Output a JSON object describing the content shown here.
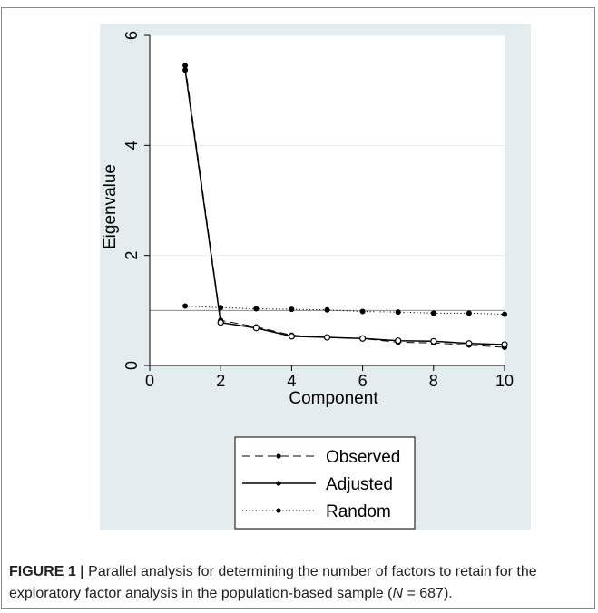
{
  "chart_data": {
    "type": "line",
    "xlabel": "Component",
    "ylabel": "Eigenvalue",
    "xlim": [
      0,
      10
    ],
    "ylim": [
      0,
      6
    ],
    "xticks": [
      0,
      2,
      4,
      6,
      8,
      10
    ],
    "yticks": [
      0,
      2,
      4,
      6
    ],
    "grid": true,
    "reference_line": 1.0,
    "legend_position": "bottom",
    "x": [
      1,
      2,
      3,
      4,
      5,
      6,
      7,
      8,
      9,
      10
    ],
    "series": [
      {
        "name": "Observed",
        "style": "dashed",
        "values": [
          5.45,
          0.82,
          0.7,
          0.55,
          0.51,
          0.49,
          0.42,
          0.41,
          0.37,
          0.33
        ]
      },
      {
        "name": "Adjusted",
        "style": "solid",
        "values": [
          5.37,
          0.78,
          0.68,
          0.53,
          0.51,
          0.49,
          0.45,
          0.44,
          0.4,
          0.38
        ]
      },
      {
        "name": "Random",
        "style": "dotted",
        "values": [
          1.08,
          1.05,
          1.03,
          1.02,
          1.01,
          0.98,
          0.97,
          0.95,
          0.95,
          0.93
        ]
      }
    ],
    "colors": {
      "panel": "#e3ecef",
      "grid": "#ffffff",
      "ref": "#8c8c8c",
      "line": "#000000"
    }
  },
  "caption": {
    "label": "FIGURE 1 |",
    "text_part1": " Parallel analysis for determining the number of factors to retain for the exploratory factor analysis in the population-based sample (",
    "n_symbol": "N",
    "text_part2": " = 687)."
  }
}
